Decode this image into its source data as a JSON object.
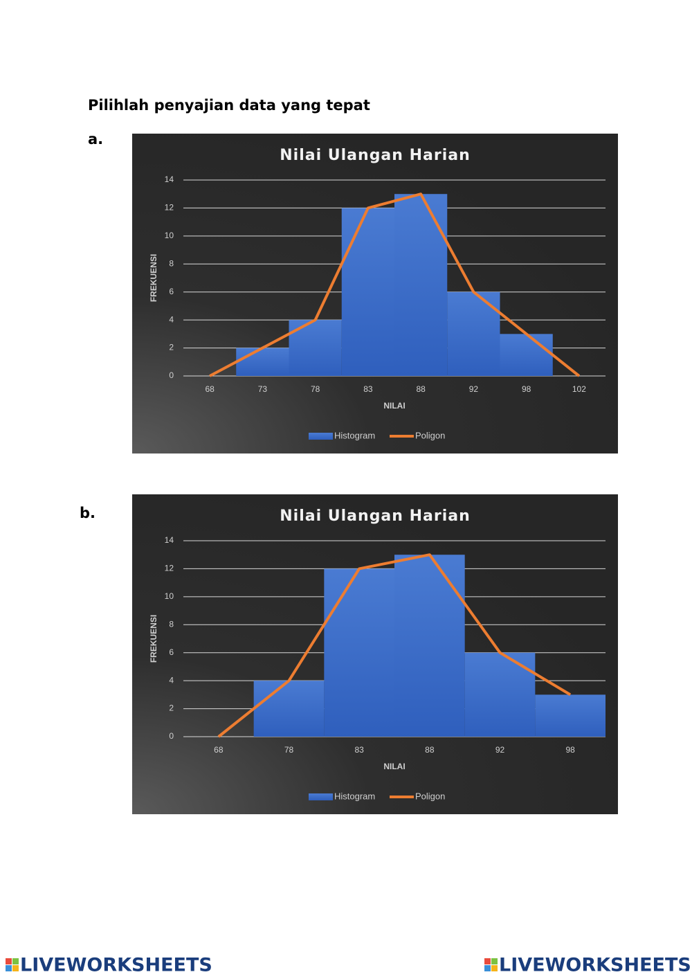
{
  "instruction": "Pilihlah penyajian data yang tepat",
  "options": [
    "a.",
    "b."
  ],
  "chart_data": [
    {
      "type": "bar",
      "title": "Nilai Ulangan Harian",
      "x_label": "NILAI",
      "y_label": "FREKUENSI",
      "categories": [
        "68",
        "73",
        "78",
        "83",
        "88",
        "92",
        "98",
        "102"
      ],
      "series": [
        {
          "name": "Histogram",
          "type": "bar",
          "color": "#3f6fcc",
          "values": [
            0,
            2,
            4,
            12,
            13,
            6,
            3,
            0
          ]
        },
        {
          "name": "Poligon",
          "type": "line",
          "color": "#ed7d31",
          "values": [
            0,
            2,
            4,
            12,
            13,
            6,
            3,
            0
          ]
        }
      ],
      "ylim": [
        0,
        14
      ],
      "yticks": [
        0,
        2,
        4,
        6,
        8,
        10,
        12,
        14
      ],
      "grid": true,
      "legend": "bottom"
    },
    {
      "type": "bar",
      "title": "Nilai Ulangan Harian",
      "x_label": "NILAI",
      "y_label": "FREKUENSI",
      "categories": [
        "68",
        "78",
        "83",
        "88",
        "92",
        "98"
      ],
      "series": [
        {
          "name": "Histogram",
          "type": "bar",
          "color": "#3f6fcc",
          "values": [
            0,
            4,
            12,
            13,
            6,
            3
          ]
        },
        {
          "name": "Poligon",
          "type": "line",
          "color": "#ed7d31",
          "values": [
            0,
            4,
            12,
            13,
            6,
            3
          ]
        }
      ],
      "ylim": [
        0,
        14
      ],
      "yticks": [
        0,
        2,
        4,
        6,
        8,
        10,
        12,
        14
      ],
      "grid": true,
      "legend": "bottom"
    }
  ],
  "footer": [
    "LIVEWORKSHEETS",
    "LIVEWORKSHEETS"
  ]
}
